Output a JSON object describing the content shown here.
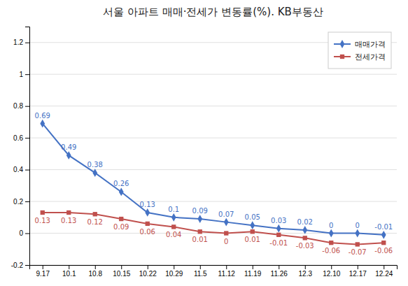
{
  "chart_data": {
    "type": "line",
    "title": "서울 아파트 매매·전세가 변동률(%). KB부동산",
    "categories": [
      "9.17",
      "10.1",
      "10.8",
      "10.15",
      "10.22",
      "10.29",
      "11.5",
      "11.12",
      "11.19",
      "11.26",
      "12.3",
      "12.10",
      "12.17",
      "12.24"
    ],
    "series": [
      {
        "name": "매매가격",
        "color": "#4472C4",
        "marker": "diamond",
        "values": [
          0.69,
          0.49,
          0.38,
          0.26,
          0.13,
          0.1,
          0.09,
          0.07,
          0.05,
          0.03,
          0.02,
          0,
          0,
          -0.01
        ]
      },
      {
        "name": "전세가격",
        "color": "#C0504D",
        "marker": "square",
        "values": [
          0.13,
          0.13,
          0.12,
          0.09,
          0.06,
          0.04,
          0.01,
          0,
          0.01,
          -0.01,
          -0.03,
          -0.06,
          -0.07,
          -0.06
        ]
      }
    ],
    "ylim": [
      -0.2,
      1.3
    ],
    "yticks": [
      -0.2,
      0,
      0.2,
      0.4,
      0.6,
      0.8,
      1,
      1.2
    ],
    "grid": true,
    "legend": "upper right",
    "data_labels": true
  }
}
